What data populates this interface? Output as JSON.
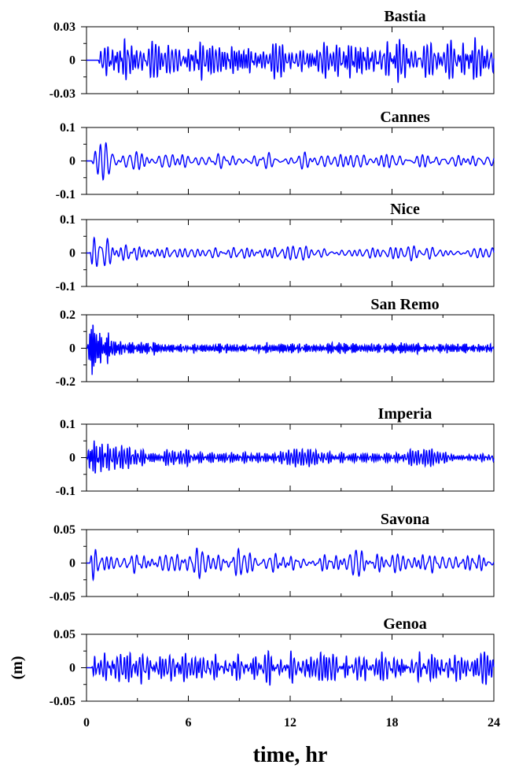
{
  "chart_data": {
    "type": "line",
    "xlabel": "time, hr",
    "ylabel": "(m)",
    "xlim": [
      0,
      24
    ],
    "xticks": [
      0,
      6,
      12,
      18,
      24
    ],
    "x_tick_labels": [
      "0",
      "6",
      "12",
      "18",
      "24"
    ],
    "line_color": "#0000ff",
    "grid": false,
    "panels": [
      {
        "name": "Bastia",
        "ylim": [
          -0.03,
          0.03
        ],
        "yticks": [
          -0.03,
          0,
          0.03
        ],
        "ytick_labels": [
          "-0.03",
          "0",
          "0.03"
        ],
        "amplitude": 0.013,
        "onset_hr": 0.7,
        "period_min": 10,
        "initial_peak": 0.0,
        "seed": 11
      },
      {
        "name": "Cannes",
        "ylim": [
          -0.1,
          0.1
        ],
        "yticks": [
          -0.1,
          0,
          0.1
        ],
        "ytick_labels": [
          "-0.1",
          "0",
          "0.1"
        ],
        "amplitude": 0.018,
        "onset_hr": 0.3,
        "period_min": 22,
        "initial_peak": 0.065,
        "seed": 23
      },
      {
        "name": "Nice",
        "ylim": [
          -0.1,
          0.1
        ],
        "yticks": [
          -0.1,
          0,
          0.1
        ],
        "ytick_labels": [
          "-0.1",
          "0",
          "0.1"
        ],
        "amplitude": 0.016,
        "onset_hr": 0.2,
        "period_min": 20,
        "initial_peak": 0.06,
        "seed": 37
      },
      {
        "name": "San Remo",
        "ylim": [
          -0.2,
          0.2
        ],
        "yticks": [
          -0.2,
          0,
          0.2
        ],
        "ytick_labels": [
          "-0.2",
          "0",
          "0.2"
        ],
        "amplitude": 0.022,
        "onset_hr": 0.05,
        "period_min": 7,
        "initial_peak": 0.13,
        "seed": 41
      },
      {
        "name": "Imperia",
        "ylim": [
          -0.1,
          0.1
        ],
        "yticks": [
          -0.1,
          0,
          0.1
        ],
        "ytick_labels": [
          "-0.1",
          "0",
          "0.1"
        ],
        "amplitude": 0.017,
        "onset_hr": 0.05,
        "period_min": 8,
        "initial_peak": 0.09,
        "seed": 53
      },
      {
        "name": "Savona",
        "ylim": [
          -0.05,
          0.05
        ],
        "yticks": [
          -0.05,
          0,
          0.05
        ],
        "ytick_labels": [
          "-0.05",
          "0",
          "0.05"
        ],
        "amplitude": 0.014,
        "onset_hr": 0.2,
        "period_min": 18,
        "initial_peak": 0.022,
        "seed": 67
      },
      {
        "name": "Genoa",
        "ylim": [
          -0.05,
          0.05
        ],
        "yticks": [
          -0.05,
          0,
          0.05
        ],
        "ytick_labels": [
          "-0.05",
          "0",
          "0.05"
        ],
        "amplitude": 0.017,
        "onset_hr": 0.3,
        "period_min": 10,
        "initial_peak": 0.02,
        "seed": 79
      }
    ]
  }
}
